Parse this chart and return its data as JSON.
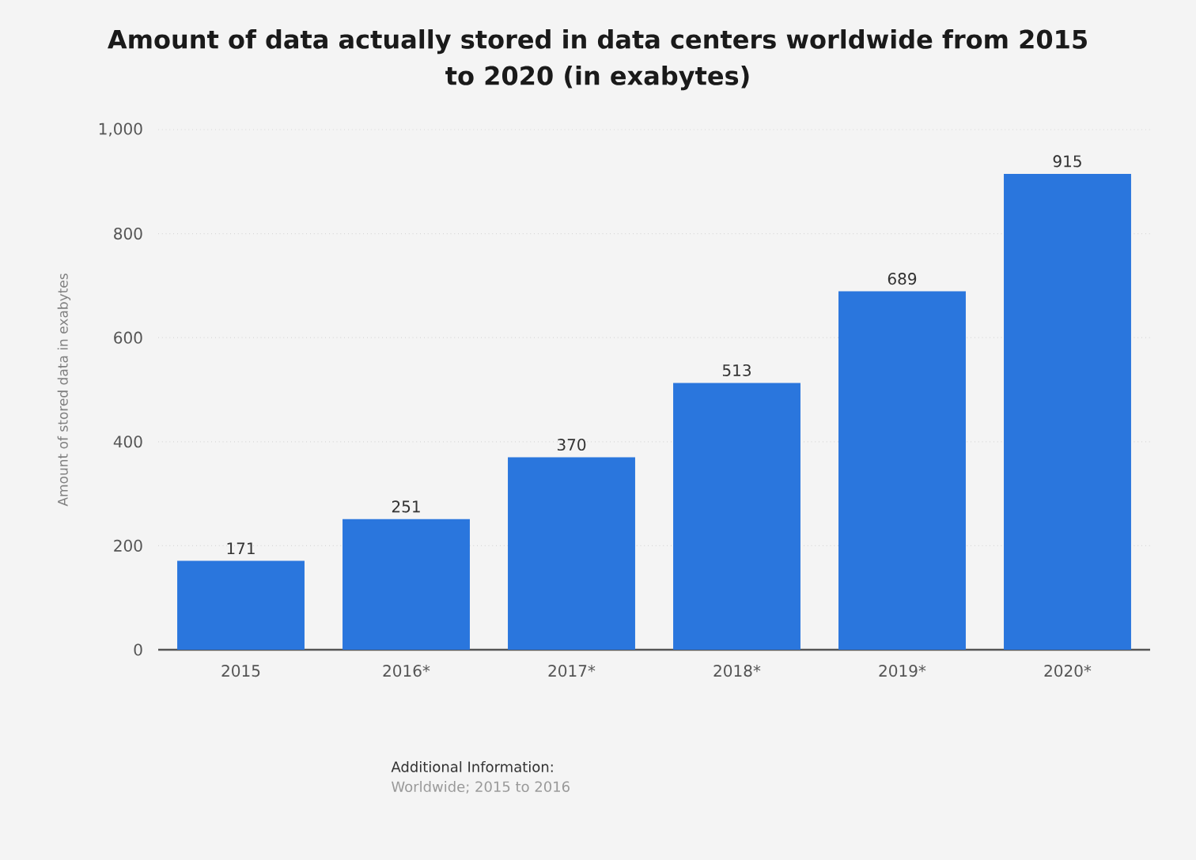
{
  "chart_data": {
    "type": "bar",
    "title": "Amount of data actually stored in data centers worldwide from 2015 to 2020 (in exabytes)",
    "ylabel": "Amount of stored data in exabytes",
    "categories": [
      "2015",
      "2016*",
      "2017*",
      "2018*",
      "2019*",
      "2020*"
    ],
    "values": [
      171,
      251,
      370,
      513,
      689,
      915
    ],
    "color": "#2a76dd",
    "ylim": [
      0,
      1000
    ],
    "yticks": [
      0,
      200,
      400,
      600,
      800,
      {
        "value": 1000,
        "label": "1,000"
      }
    ],
    "grid": "y",
    "data_labels": true,
    "annotations": [
      "Additional Information:",
      "Worldwide; 2015 to 2016"
    ]
  }
}
